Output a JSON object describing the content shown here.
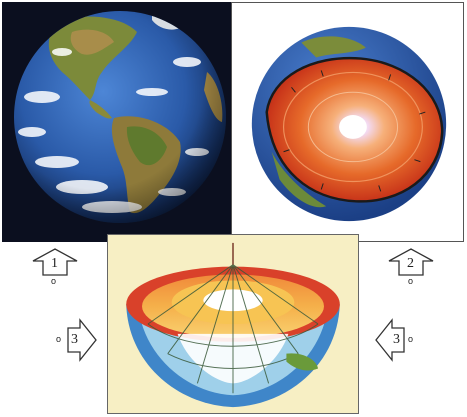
{
  "arrows": {
    "arrow_1": {
      "number": "1",
      "sub": "o"
    },
    "arrow_2": {
      "number": "2",
      "sub": "o"
    },
    "arrow_3_left": {
      "number": "3",
      "sub": "o"
    },
    "arrow_3_right": {
      "number": "3",
      "sub": "o"
    }
  },
  "colors": {
    "space": "#0b0f1f",
    "ocean": "#2f63b5",
    "land": "#8a7a3a",
    "crust": "#e0521f",
    "mantle": "#f08a3a",
    "core": "#f6d49a",
    "inner_core": "#ffffff",
    "section_background": "#f7efc4"
  },
  "icons": {
    "earth_globe": "earth-globe-icon",
    "cutaway_globe": "earth-cutaway-icon",
    "cross_section": "earth-cross-section-icon",
    "arrow_up": "arrow-up-icon",
    "arrow_right": "arrow-right-icon"
  }
}
